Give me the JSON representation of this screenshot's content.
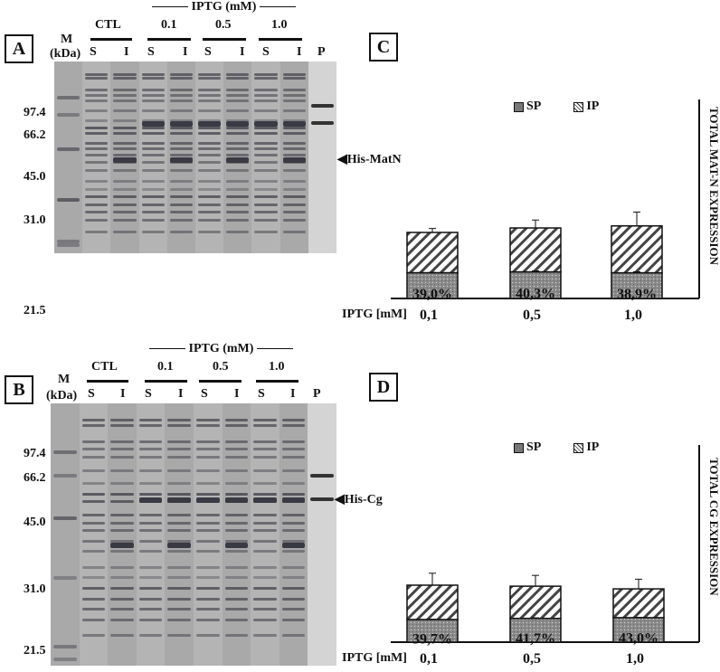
{
  "figure": {
    "panel_A": {
      "label": "A",
      "iptg_header": "IPTG (mM)",
      "groups": [
        "CTL",
        "0.1",
        "0.5",
        "1.0"
      ],
      "marker_label": "M",
      "marker_unit": "(kDa)",
      "lanes": [
        "S",
        "I",
        "S",
        "I",
        "S",
        "I",
        "S",
        "I",
        "P"
      ],
      "mw_markers": [
        "97.4",
        "66.2",
        "45.0",
        "31.0",
        "21.5"
      ],
      "arrow_label": "His-MatN"
    },
    "panel_B": {
      "label": "B",
      "iptg_header": "IPTG (mM)",
      "groups": [
        "CTL",
        "0.1",
        "0.5",
        "1.0"
      ],
      "marker_label": "M",
      "marker_unit": "(kDa)",
      "lanes": [
        "S",
        "I",
        "S",
        "I",
        "S",
        "I",
        "S",
        "I",
        "P"
      ],
      "mw_markers": [
        "97.4",
        "66.2",
        "45.0",
        "31.0",
        "21.5"
      ],
      "arrow_label": "His-Cg"
    },
    "panel_C": {
      "label": "C"
    },
    "panel_D": {
      "label": "D"
    }
  },
  "chart_data": [
    {
      "type": "bar",
      "stacked": true,
      "panel": "C",
      "title": "",
      "ylabel": "TOTAL MAT-N EXPRESSION",
      "xlabel": "IPTG [mM]",
      "categories": [
        "0,1",
        "0,5",
        "1,0"
      ],
      "legend": [
        "SP",
        "IP"
      ],
      "series": [
        {
          "name": "SP",
          "values": [
            39.0,
            40.3,
            38.9
          ],
          "labels": [
            "39,0%",
            "40,3%",
            "38,9%"
          ],
          "error": [
            0.5,
            1.5,
            1.5
          ]
        },
        {
          "name": "IP",
          "values": [
            61.0,
            66.5,
            71.0
          ],
          "error": [
            6,
            12,
            21
          ]
        }
      ],
      "grid": false,
      "legend_position": "top"
    },
    {
      "type": "bar",
      "stacked": true,
      "panel": "D",
      "title": "",
      "ylabel": "TOTAL CG EXPRESSION",
      "xlabel": "IPTG [mM]",
      "categories": [
        "0,1",
        "0,5",
        "1,0"
      ],
      "legend": [
        "SP",
        "IP"
      ],
      "series": [
        {
          "name": "SP",
          "values": [
            39.7,
            41.7,
            43.0
          ],
          "labels": [
            "39,7%",
            "41,7%",
            "43,0%"
          ],
          "error": [
            0.5,
            1,
            0.5
          ]
        },
        {
          "name": "IP",
          "values": [
            60.3,
            56.5,
            50.5
          ],
          "error": [
            21,
            19,
            17
          ]
        }
      ],
      "grid": false,
      "legend_position": "top"
    }
  ]
}
